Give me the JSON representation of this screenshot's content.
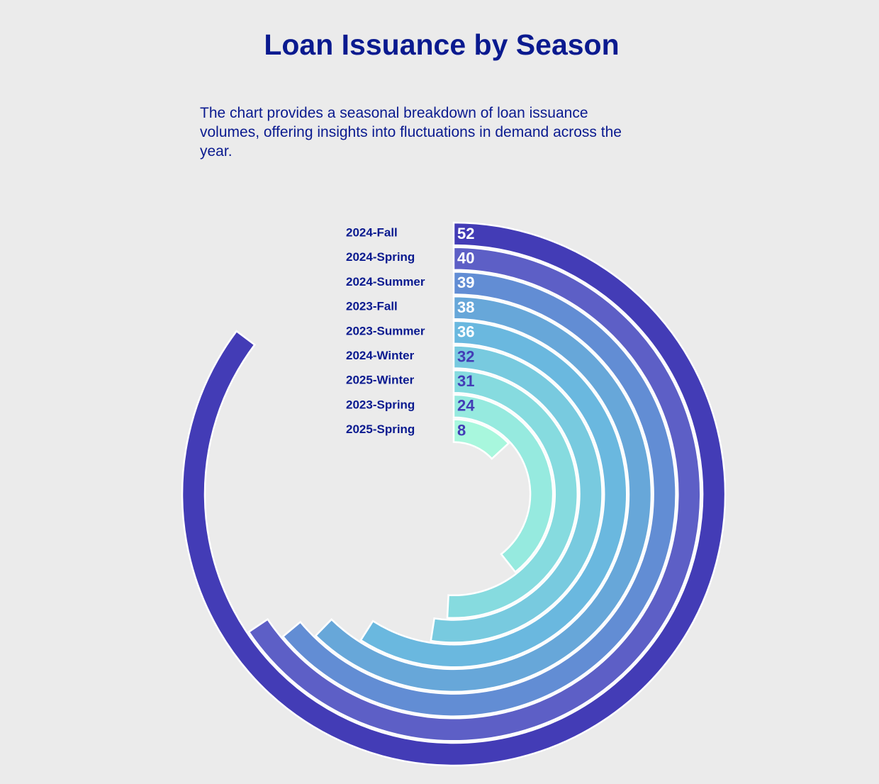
{
  "chart_data": {
    "type": "radial-bar",
    "title": "Loan Issuance by Season",
    "subtitle_lines": [
      "The chart provides a seasonal breakdown of loan issuance",
      "volumes, offering insights into fluctuations in demand across the",
      "year."
    ],
    "max_value": 61,
    "categories": [
      "2024-Fall",
      "2024-Spring",
      "2024-Summer",
      "2023-Fall",
      "2023-Summer",
      "2024-Winter",
      "2025-Winter",
      "2023-Spring",
      "2025-Spring"
    ],
    "values": [
      52,
      40,
      39,
      38,
      36,
      32,
      31,
      24,
      8
    ],
    "colors": [
      "#433cb6",
      "#5d5fc6",
      "#628dd4",
      "#67a7d9",
      "#6ab8df",
      "#78cadf",
      "#86dbdf",
      "#96eadf",
      "#a8f7dd"
    ],
    "value_label_colors": [
      "#ffffff",
      "#ffffff",
      "#ffffff",
      "#ffffff",
      "#ffffff",
      "#433cb6",
      "#433cb6",
      "#433cb6",
      "#433cb6"
    ]
  }
}
